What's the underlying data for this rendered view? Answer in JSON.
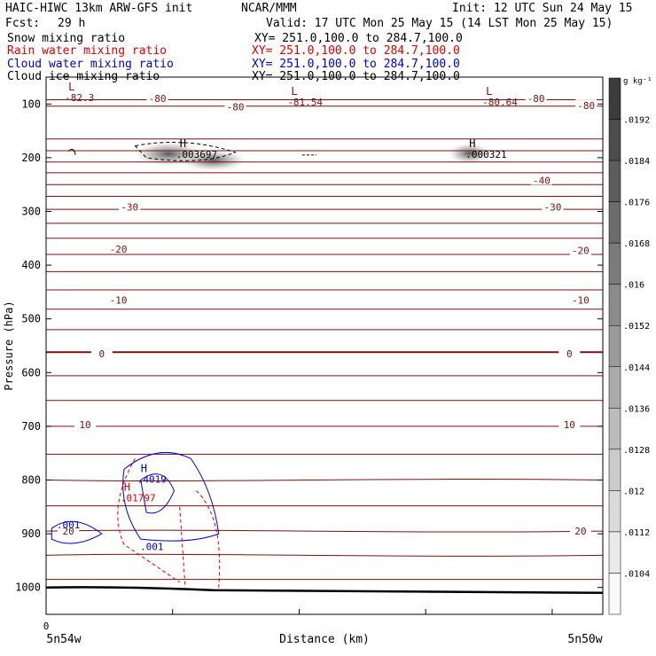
{
  "header": {
    "model": "HAIC-HIWC 13km ARW-GFS init",
    "org": "NCAR/MMM",
    "init": "Init: 12 UTC Sun 24 May 15",
    "fcst_label": "Fcst:",
    "fcst_value": "29 h",
    "valid": "Valid: 17 UTC Mon 25 May 15 (14 LST Mon 25 May 15)",
    "fields": [
      {
        "name": "Snow mixing ratio",
        "xy": "",
        "color": "#000000"
      },
      {
        "name": "Rain water mixing ratio",
        "xy": "XY= 251.0,100.0 to 284.7,100.0",
        "color": "#e00000"
      },
      {
        "name": "Cloud water mixing ratio",
        "xy": "XY= 251.0,100.0 to 284.7,100.0",
        "color": "#0000cc"
      },
      {
        "name": "Cloud ice mixing ratio",
        "xy": "XY= 251.0,100.0 to 284.7,100.0",
        "color": "#000000"
      }
    ],
    "snow_xy": "XY= 251.0,100.0 to 284.7,100.0"
  },
  "colors": {
    "temp_contour": "#7a1010",
    "rain": "#e00000",
    "cloud_water": "#0000cc",
    "ice": "#000000",
    "terrain": "#000000"
  },
  "chart_data": {
    "type": "cross-section",
    "ylabel": "Pressure (hPa)",
    "xlabel": "Distance (km)",
    "x_start_label": "5n54w",
    "x_end_label": "5n50w",
    "x_zero_label": "0",
    "yticks": [
      100,
      200,
      300,
      400,
      500,
      600,
      700,
      800,
      900,
      1000
    ],
    "ylim": [
      1050,
      50
    ],
    "temperature_contour_labels": [
      {
        "text": "-80",
        "x": 0.2,
        "p": 90
      },
      {
        "text": "-80",
        "x": 0.34,
        "p": 105
      },
      {
        "text": "-80",
        "x": 0.88,
        "p": 90
      },
      {
        "text": "-80",
        "x": 0.97,
        "p": 103
      },
      {
        "text": "-40",
        "x": 0.89,
        "p": 242
      },
      {
        "text": "-30",
        "x": 0.15,
        "p": 292
      },
      {
        "text": "-30",
        "x": 0.91,
        "p": 292
      },
      {
        "text": "-20",
        "x": 0.13,
        "p": 370
      },
      {
        "text": "-20",
        "x": 0.96,
        "p": 373
      },
      {
        "text": "-10",
        "x": 0.13,
        "p": 465
      },
      {
        "text": "-10",
        "x": 0.96,
        "p": 465
      },
      {
        "text": "0",
        "x": 0.1,
        "p": 565
      },
      {
        "text": "0",
        "x": 0.94,
        "p": 565
      },
      {
        "text": "10",
        "x": 0.07,
        "p": 697
      },
      {
        "text": "10",
        "x": 0.94,
        "p": 697
      },
      {
        "text": "20",
        "x": 0.04,
        "p": 895
      },
      {
        "text": "20",
        "x": 0.96,
        "p": 895
      }
    ],
    "extrema": [
      {
        "kind": "L",
        "value": "-82.3",
        "x": 0.04,
        "p": 85,
        "color": "#7a1010"
      },
      {
        "kind": "L",
        "value": "-81.54",
        "x": 0.44,
        "p": 93,
        "color": "#7a1010"
      },
      {
        "kind": "L",
        "value": "-80.64",
        "x": 0.79,
        "p": 93,
        "color": "#7a1010"
      },
      {
        "kind": "H",
        "value": ".003697",
        "x": 0.24,
        "p": 190,
        "color": "#000000"
      },
      {
        "kind": "H",
        "value": ".000321",
        "x": 0.76,
        "p": 190,
        "color": "#000000"
      },
      {
        "kind": "H",
        "value": ".4019",
        "x": 0.17,
        "p": 795,
        "color": "#0000cc"
      },
      {
        "kind": "H",
        "value": ".01797",
        "x": 0.14,
        "p": 830,
        "color": "#e00000"
      }
    ],
    "cloud_water_labels": [
      {
        "text": ".001",
        "x": 0.04,
        "p": 883
      },
      {
        "text": ".001",
        "x": 0.19,
        "p": 924
      }
    ],
    "colorbar": {
      "unit": "g kg⁻¹",
      "ticks": [
        ".0192",
        ".0184",
        ".0176",
        ".0168",
        ".016",
        ".0152",
        ".0144",
        ".0136",
        ".0128",
        ".012",
        ".0112",
        ".0104"
      ]
    }
  }
}
